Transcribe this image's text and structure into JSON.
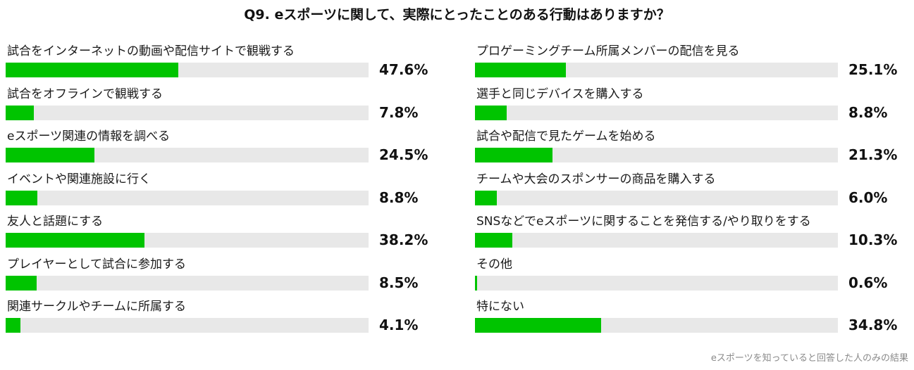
{
  "chart_data": {
    "type": "bar",
    "orientation": "horizontal",
    "title": "Q9. eスポーツに関して、実際にとったことのある行動はありますか？",
    "unit": "%",
    "xlim": [
      0,
      100
    ],
    "bar_color": "#00c400",
    "track_color": "#e8e8e8",
    "categories": [
      "試合をインターネットの動画や配信サイトで観戦する",
      "試合をオフラインで観戦する",
      "eスポーツ関連の情報を調べる",
      "イベントや関連施設に行く",
      "友人と話題にする",
      "プレイヤーとして試合に参加する",
      "関連サークルやチームに所属する",
      "プロゲーミングチーム所属メンバーの配信を見る",
      "選手と同じデバイスを購入する",
      "試合や配信で見たゲームを始める",
      "チームや大会のスポンサーの商品を購入する",
      "SNSなどでeスポーツに関することを発信する/やり取りをする",
      "その他",
      "特にない"
    ],
    "values": [
      47.6,
      7.8,
      24.5,
      8.8,
      38.2,
      8.5,
      4.1,
      25.1,
      8.8,
      21.3,
      6.0,
      10.3,
      0.6,
      34.8
    ],
    "value_labels": [
      "47.6%",
      "7.8%",
      "24.5%",
      "8.8%",
      "38.2%",
      "8.5%",
      "4.1%",
      "25.1%",
      "8.8%",
      "21.3%",
      "6.0%",
      "10.3%",
      "0.6%",
      "34.8%"
    ],
    "note": "eスポーツを知っていると回答した人のみの結果"
  }
}
